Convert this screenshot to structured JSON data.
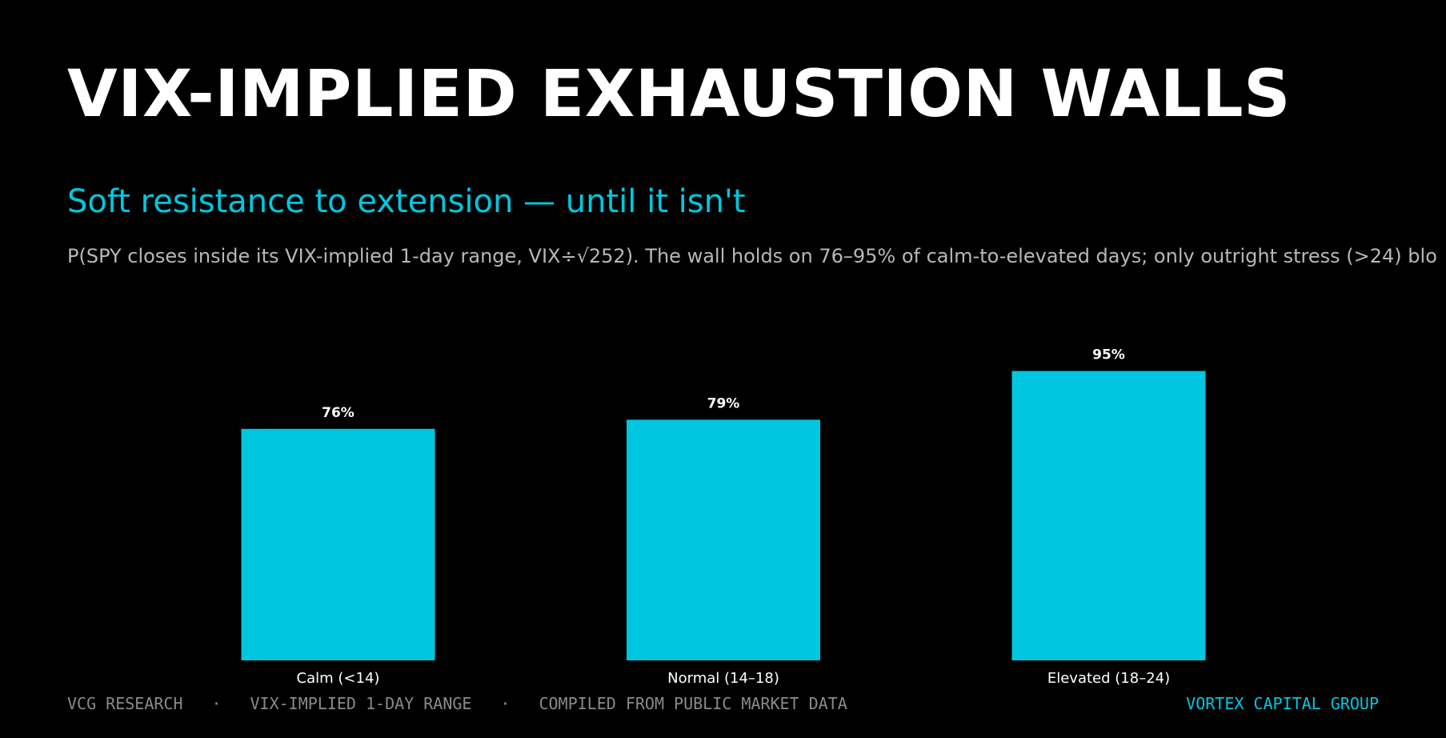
{
  "header": {
    "title": "VIX-IMPLIED EXHAUSTION WALLS",
    "subtitle": "Soft resistance to extension — until it isn't",
    "description": "P(SPY closes inside its VIX-implied 1-day range, VIX÷√252). The wall holds on 76–95% of calm-to-elevated days; only outright stress (>24) blo"
  },
  "colors": {
    "background": "#000000",
    "accent": "#00c8e0",
    "bar": "#00c6df",
    "title": "#ffffff",
    "muted": "#8a8a8a",
    "description": "#b8b8b8"
  },
  "chart_data": {
    "type": "bar",
    "categories": [
      "Calm (<14)",
      "Normal (14–18)",
      "Elevated (18–24)"
    ],
    "values": [
      76,
      79,
      95
    ],
    "data_labels": [
      "76%",
      "79%",
      "95%"
    ],
    "title": "",
    "xlabel": "",
    "ylabel": "",
    "ylim": [
      0,
      100
    ],
    "grid": false,
    "legend": "none"
  },
  "footer": {
    "items": [
      "VCG RESEARCH",
      "VIX-IMPLIED 1-DAY RANGE",
      "COMPILED FROM PUBLIC MARKET DATA"
    ],
    "separator": "·",
    "brand": "VORTEX CAPITAL GROUP"
  }
}
